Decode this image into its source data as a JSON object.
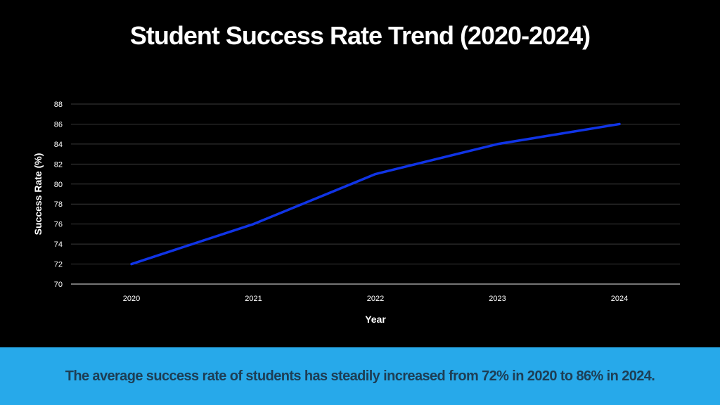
{
  "title": "Student Success Rate Trend (2020-2024)",
  "caption": "The average success rate of students has steadily increased from 72% in 2020 to 86% in 2024.",
  "colors": {
    "background": "#000000",
    "line": "#1034e6",
    "footer_band": "#27a9ea",
    "footer_text": "#1d3e55",
    "grid": "#3a3a3a"
  },
  "chart_data": {
    "type": "line",
    "title": "Student Success Rate Trend (2020-2024)",
    "xlabel": "Year",
    "ylabel": "Success Rate (%)",
    "categories": [
      "2020",
      "2021",
      "2022",
      "2023",
      "2024"
    ],
    "series": [
      {
        "values": [
          72,
          76,
          81,
          84,
          86
        ]
      }
    ],
    "ylim": [
      70,
      88
    ],
    "yticks": [
      "70",
      "72",
      "74",
      "76",
      "78",
      "80",
      "82",
      "84",
      "86",
      "88"
    ],
    "grid": "horizontal",
    "legend": "none"
  }
}
